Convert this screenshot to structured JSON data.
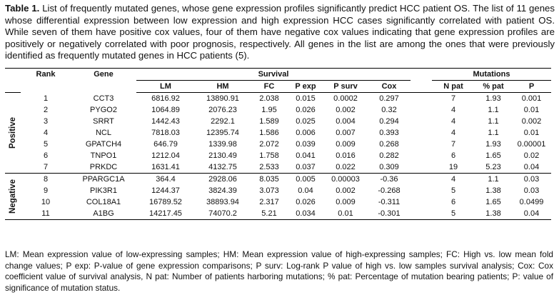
{
  "caption": {
    "label": "Table 1.",
    "text": " List of frequently mutated genes, whose gene expression profiles significantly predict HCC patient OS. The list of 11 genes whose differential expression between low expression and high expression HCC cases significantly correlated with patient OS. While seven of them have positive cox values, four of them have negative cox values indicating that gene expression profiles are positively or negatively correlated with poor prognosis, respectively. All genes in the list are among the ones that were previously identified as frequently mutated genes in HCC patients (5)."
  },
  "table": {
    "group_headers": {
      "survival": "Survival",
      "mutations": "Mutations"
    },
    "columns": {
      "rank": "Rank",
      "gene": "Gene",
      "lm": "LM",
      "hm": "HM",
      "fc": "FC",
      "p_exp": "P exp",
      "p_surv": "P surv",
      "cox": "Cox",
      "n_pat": "N pat",
      "pct_pat": "% pat",
      "p": "P"
    },
    "groups": [
      {
        "label": "Positive",
        "rows": [
          [
            "1",
            "CCT3",
            "6816.92",
            "13890.91",
            "2.038",
            "0.015",
            "0.0002",
            "0.297",
            "7",
            "1.93",
            "0.001"
          ],
          [
            "2",
            "PYGO2",
            "1064.89",
            "2076.23",
            "1.95",
            "0.026",
            "0.002",
            "0.32",
            "4",
            "1.1",
            "0.01"
          ],
          [
            "3",
            "SRRT",
            "1442.43",
            "2292.1",
            "1.589",
            "0.025",
            "0.004",
            "0.294",
            "4",
            "1.1",
            "0.002"
          ],
          [
            "4",
            "NCL",
            "7818.03",
            "12395.74",
            "1.586",
            "0.006",
            "0.007",
            "0.393",
            "4",
            "1.1",
            "0.01"
          ],
          [
            "5",
            "GPATCH4",
            "646.79",
            "1339.98",
            "2.072",
            "0.039",
            "0.009",
            "0.268",
            "7",
            "1.93",
            "0.00001"
          ],
          [
            "6",
            "TNPO1",
            "1212.04",
            "2130.49",
            "1.758",
            "0.041",
            "0.016",
            "0.282",
            "6",
            "1.65",
            "0.02"
          ],
          [
            "7",
            "PRKDC",
            "1631.41",
            "4132.75",
            "2.533",
            "0.037",
            "0.022",
            "0.309",
            "19",
            "5.23",
            "0.04"
          ]
        ]
      },
      {
        "label": "Negative",
        "rows": [
          [
            "8",
            "PPARGC1A",
            "364.4",
            "2928.06",
            "8.035",
            "0.005",
            "0.00003",
            "-0.36",
            "4",
            "1.1",
            "0.03"
          ],
          [
            "9",
            "PIK3R1",
            "1244.37",
            "3824.39",
            "3.073",
            "0.04",
            "0.002",
            "-0.268",
            "5",
            "1.38",
            "0.03"
          ],
          [
            "10",
            "COL18A1",
            "16789.52",
            "38893.94",
            "2.317",
            "0.026",
            "0.009",
            "-0.311",
            "6",
            "1.65",
            "0.0499"
          ],
          [
            "11",
            "A1BG",
            "14217.45",
            "74070.2",
            "5.21",
            "0.034",
            "0.01",
            "-0.301",
            "5",
            "1.38",
            "0.04"
          ]
        ]
      }
    ]
  },
  "footnote": "LM: Mean expression value of low-expressing samples; HM: Mean expression value of high-expressing samples; FC: High vs. low mean fold change values; P exp: P-value of gene expression comparisons; P surv: Log-rank P value of high vs. low samples survival analysis; Cox: Cox coefficient value of survival analysis, N pat: Number of patients harboring mutations; % pat: Percentage of mutation bearing patients; P: value of significance of mutation status."
}
